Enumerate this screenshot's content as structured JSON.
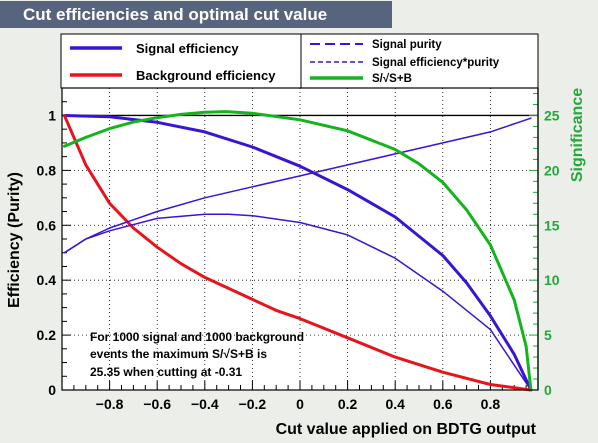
{
  "title": "Cut efficiencies and optimal cut value",
  "legend_left": [
    "Signal efficiency",
    "Background efficiency"
  ],
  "legend_right": [
    "Signal purity",
    "Signal efficiency*purity",
    "S/√S+B"
  ],
  "note": {
    "line1": "For 1000 signal and 1000 background",
    "line2": "events the maximum S/√S+B is",
    "line3": "25.35 when cutting at -0.31"
  },
  "colors": {
    "signal": "#3a14d4",
    "background": "#e8141c",
    "significance": "#14b41c",
    "right_axis": "#22a83a",
    "title_bar": "#56647e"
  },
  "chart_data": {
    "type": "line",
    "xlabel": "Cut value applied on BDTG output",
    "ylabel": "Efficiency (Purity)",
    "ylabel_right": "Significance",
    "xlim": [
      -1.0,
      1.0
    ],
    "ylim": [
      0,
      1.1
    ],
    "ylim_right": [
      0,
      27.5
    ],
    "x_ticks": [
      -0.8,
      -0.6,
      -0.4,
      -0.2,
      0,
      0.2,
      0.4,
      0.6,
      0.8
    ],
    "x_tick_labels": [
      "−0.8",
      "−0.6",
      "−0.4",
      "−0.2",
      "0",
      "0.2",
      "0.4",
      "0.6",
      "0.8"
    ],
    "y_ticks": [
      0,
      0.2,
      0.4,
      0.6,
      0.8,
      1
    ],
    "y_tick_labels": [
      "0",
      "0.2",
      "0.4",
      "0.6",
      "0.8",
      "1"
    ],
    "y_ticks_right": [
      0,
      5,
      10,
      15,
      20,
      25
    ],
    "y_tick_labels_right": [
      "0",
      "5",
      "10",
      "15",
      "20",
      "25"
    ],
    "grid": true,
    "series": [
      {
        "name": "Signal efficiency",
        "axis": "left",
        "style": "solid-thick",
        "x": [
          -0.99,
          -0.8,
          -0.6,
          -0.4,
          -0.2,
          0.0,
          0.2,
          0.4,
          0.6,
          0.7,
          0.8,
          0.9,
          0.97
        ],
        "y": [
          1.0,
          0.995,
          0.975,
          0.94,
          0.885,
          0.815,
          0.73,
          0.63,
          0.49,
          0.39,
          0.27,
          0.13,
          0.0
        ]
      },
      {
        "name": "Background efficiency",
        "axis": "left",
        "style": "solid-thick",
        "x": [
          -0.99,
          -0.9,
          -0.8,
          -0.7,
          -0.6,
          -0.5,
          -0.4,
          -0.3,
          -0.2,
          -0.1,
          0.0,
          0.2,
          0.4,
          0.6,
          0.8,
          0.97
        ],
        "y": [
          1.0,
          0.82,
          0.68,
          0.59,
          0.52,
          0.46,
          0.41,
          0.37,
          0.33,
          0.29,
          0.26,
          0.19,
          0.12,
          0.065,
          0.02,
          0.0
        ]
      },
      {
        "name": "Signal purity",
        "axis": "left",
        "style": "dashed",
        "x": [
          -0.99,
          -0.9,
          -0.8,
          -0.7,
          -0.6,
          -0.4,
          -0.2,
          0.0,
          0.2,
          0.4,
          0.6,
          0.8,
          0.97
        ],
        "y": [
          0.5,
          0.55,
          0.59,
          0.62,
          0.65,
          0.7,
          0.74,
          0.78,
          0.82,
          0.86,
          0.9,
          0.94,
          0.99
        ]
      },
      {
        "name": "Signal efficiency*purity",
        "axis": "left",
        "style": "dashed-thin",
        "x": [
          -0.99,
          -0.9,
          -0.8,
          -0.6,
          -0.4,
          -0.3,
          -0.2,
          0.0,
          0.2,
          0.4,
          0.6,
          0.8,
          0.97
        ],
        "y": [
          0.5,
          0.55,
          0.58,
          0.625,
          0.64,
          0.64,
          0.635,
          0.61,
          0.565,
          0.48,
          0.36,
          0.22,
          0.0
        ]
      },
      {
        "name": "S/√S+B",
        "axis": "right",
        "style": "solid-thick",
        "x": [
          -0.99,
          -0.9,
          -0.8,
          -0.7,
          -0.6,
          -0.5,
          -0.4,
          -0.31,
          -0.2,
          0.0,
          0.2,
          0.4,
          0.5,
          0.6,
          0.7,
          0.8,
          0.9,
          0.95,
          0.97
        ],
        "y": [
          22.2,
          23.0,
          23.8,
          24.4,
          24.8,
          25.1,
          25.3,
          25.35,
          25.2,
          24.6,
          23.6,
          21.9,
          20.6,
          18.9,
          16.4,
          13.2,
          8.2,
          4.0,
          0.0
        ]
      }
    ]
  }
}
